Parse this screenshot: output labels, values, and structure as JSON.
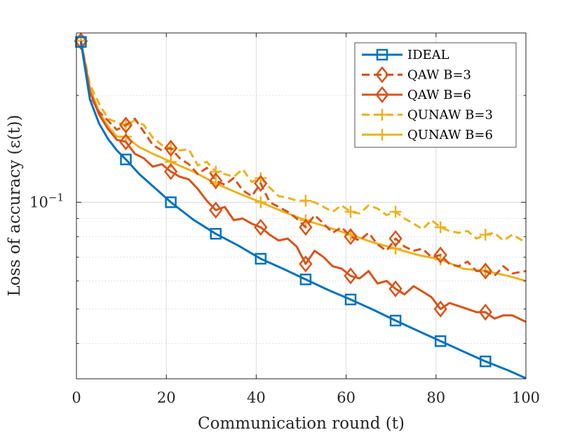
{
  "chart_data": {
    "type": "line",
    "title": "",
    "xlabel": "Communication round (t)",
    "ylabel": "Loss of accuracy (ε(t))",
    "xscale": "linear",
    "yscale": "log",
    "xlim": [
      0,
      100
    ],
    "ylim": [
      0.0318,
      0.3
    ],
    "xticks": [
      0,
      20,
      40,
      60,
      80,
      100
    ],
    "xtick_labels": [
      "0",
      "20",
      "40",
      "60",
      "80",
      "100"
    ],
    "ytick_major": [
      0.1
    ],
    "ytick_major_labels": [
      "10−1"
    ],
    "y_minor_ticks": [
      0.04,
      0.05,
      0.06,
      0.07,
      0.08,
      0.09,
      0.2
    ],
    "grid": true,
    "legend_position": "top-right",
    "series": [
      {
        "name": "IDEAL",
        "color": "#0072BD",
        "line_style": "solid",
        "marker": "square",
        "x": [
          1,
          3,
          5,
          7,
          9,
          11,
          14,
          17,
          21,
          26,
          31,
          36,
          41,
          46,
          51,
          56,
          61,
          66,
          71,
          76,
          81,
          86,
          91,
          96,
          100
        ],
        "y": [
          0.283,
          0.195,
          0.167,
          0.151,
          0.14,
          0.132,
          0.12,
          0.111,
          0.1,
          0.0893,
          0.0815,
          0.0755,
          0.0693,
          0.0649,
          0.0606,
          0.0566,
          0.0532,
          0.0498,
          0.0464,
          0.0434,
          0.0406,
          0.038,
          0.0356,
          0.0336,
          0.0319
        ],
        "marker_x": [
          1,
          11,
          21,
          31,
          41,
          51,
          61,
          71,
          81,
          91
        ],
        "marker_y": [
          0.283,
          0.132,
          0.1,
          0.0815,
          0.0693,
          0.0606,
          0.0532,
          0.0464,
          0.0406,
          0.0356
        ]
      },
      {
        "name": "QAW B=3",
        "color": "#D95319",
        "line_style": "dashed",
        "marker": "diamond",
        "x": [
          1,
          3,
          5,
          7,
          9,
          11,
          13,
          15,
          17,
          19,
          21,
          23,
          25,
          27,
          29,
          31,
          33,
          35,
          37,
          39,
          41,
          43,
          45,
          47,
          49,
          51,
          53,
          55,
          57,
          59,
          61,
          63,
          65,
          67,
          69,
          71,
          73,
          75,
          77,
          79,
          81,
          83,
          85,
          87,
          89,
          91,
          93,
          95,
          97,
          100
        ],
        "y": [
          0.285,
          0.2,
          0.18,
          0.17,
          0.16,
          0.165,
          0.172,
          0.158,
          0.145,
          0.14,
          0.142,
          0.133,
          0.128,
          0.12,
          0.125,
          0.115,
          0.112,
          0.117,
          0.108,
          0.104,
          0.113,
          0.1,
          0.097,
          0.094,
          0.09,
          0.085,
          0.092,
          0.087,
          0.082,
          0.085,
          0.08,
          0.078,
          0.082,
          0.076,
          0.073,
          0.079,
          0.075,
          0.073,
          0.074,
          0.07,
          0.071,
          0.067,
          0.066,
          0.068,
          0.064,
          0.064,
          0.062,
          0.066,
          0.063,
          0.064
        ],
        "marker_x": [
          1,
          11,
          21,
          31,
          41,
          51,
          61,
          71,
          81,
          91
        ],
        "marker_y": [
          0.285,
          0.165,
          0.142,
          0.115,
          0.113,
          0.085,
          0.08,
          0.079,
          0.071,
          0.064
        ]
      },
      {
        "name": "QAW B=6",
        "color": "#D95319",
        "line_style": "solid",
        "marker": "diamond",
        "x": [
          1,
          3,
          5,
          7,
          9,
          11,
          13,
          15,
          17,
          19,
          21,
          23,
          25,
          27,
          29,
          31,
          33,
          35,
          37,
          39,
          41,
          43,
          45,
          47,
          49,
          51,
          53,
          55,
          57,
          59,
          61,
          63,
          65,
          67,
          69,
          71,
          73,
          75,
          77,
          79,
          81,
          83,
          85,
          87,
          89,
          91,
          93,
          95,
          97,
          100
        ],
        "y": [
          0.284,
          0.205,
          0.177,
          0.161,
          0.15,
          0.148,
          0.137,
          0.133,
          0.126,
          0.128,
          0.122,
          0.118,
          0.116,
          0.109,
          0.101,
          0.095,
          0.097,
          0.089,
          0.09,
          0.087,
          0.085,
          0.081,
          0.078,
          0.079,
          0.075,
          0.067,
          0.073,
          0.07,
          0.066,
          0.065,
          0.062,
          0.061,
          0.064,
          0.059,
          0.06,
          0.057,
          0.055,
          0.058,
          0.056,
          0.054,
          0.05,
          0.052,
          0.051,
          0.05,
          0.049,
          0.049,
          0.047,
          0.048,
          0.048,
          0.046
        ],
        "marker_x": [
          1,
          11,
          21,
          31,
          41,
          51,
          61,
          71,
          81,
          91
        ],
        "marker_y": [
          0.284,
          0.148,
          0.122,
          0.095,
          0.085,
          0.067,
          0.062,
          0.057,
          0.05,
          0.049
        ]
      },
      {
        "name": "QUNAW B=3",
        "color": "#EDB120",
        "line_style": "dashed",
        "marker": "plus",
        "x": [
          1,
          3,
          5,
          7,
          9,
          11,
          13,
          15,
          17,
          19,
          21,
          23,
          25,
          27,
          29,
          31,
          33,
          35,
          37,
          39,
          41,
          43,
          45,
          47,
          49,
          51,
          53,
          55,
          57,
          59,
          61,
          63,
          65,
          67,
          69,
          71,
          73,
          75,
          77,
          79,
          81,
          83,
          85,
          87,
          89,
          91,
          93,
          95,
          97,
          100
        ],
        "y": [
          0.285,
          0.215,
          0.19,
          0.172,
          0.168,
          0.165,
          0.17,
          0.165,
          0.152,
          0.145,
          0.142,
          0.14,
          0.141,
          0.127,
          0.13,
          0.122,
          0.12,
          0.118,
          0.124,
          0.114,
          0.117,
          0.11,
          0.104,
          0.103,
          0.101,
          0.101,
          0.1,
          0.097,
          0.094,
          0.098,
          0.094,
          0.093,
          0.098,
          0.096,
          0.092,
          0.094,
          0.09,
          0.087,
          0.084,
          0.089,
          0.085,
          0.083,
          0.082,
          0.083,
          0.079,
          0.081,
          0.082,
          0.078,
          0.081,
          0.077
        ],
        "marker_x": [
          1,
          11,
          21,
          31,
          41,
          51,
          61,
          71,
          81,
          91
        ],
        "marker_y": [
          0.285,
          0.165,
          0.142,
          0.122,
          0.117,
          0.101,
          0.094,
          0.094,
          0.085,
          0.081
        ]
      },
      {
        "name": "QUNAW B=6",
        "color": "#EDB120",
        "line_style": "solid",
        "marker": "plus",
        "x": [
          1,
          3,
          5,
          7,
          9,
          11,
          14,
          17,
          21,
          26,
          31,
          36,
          41,
          46,
          51,
          56,
          61,
          66,
          71,
          76,
          81,
          86,
          91,
          96,
          100
        ],
        "y": [
          0.285,
          0.21,
          0.18,
          0.164,
          0.153,
          0.153,
          0.143,
          0.137,
          0.13,
          0.122,
          0.113,
          0.106,
          0.1,
          0.094,
          0.089,
          0.085,
          0.081,
          0.077,
          0.074,
          0.071,
          0.069,
          0.065,
          0.064,
          0.062,
          0.06
        ],
        "marker_x": [
          1,
          11,
          21,
          31,
          41,
          51,
          61,
          71,
          81,
          91
        ],
        "marker_y": [
          0.285,
          0.153,
          0.13,
          0.113,
          0.1,
          0.089,
          0.081,
          0.074,
          0.069,
          0.064
        ]
      }
    ]
  }
}
